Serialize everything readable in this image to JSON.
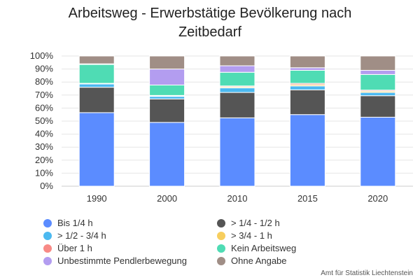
{
  "chart_data": {
    "type": "bar",
    "stacked": true,
    "title": "Arbeitsweg - Erwerbstätige Bevölkerung nach Zeitbedarf",
    "title_lines": [
      "Arbeitsweg - Erwerbstätige Bevölkerung nach",
      "Zeitbedarf"
    ],
    "categories": [
      "1990",
      "2000",
      "2010",
      "2015",
      "2020"
    ],
    "ylim": [
      0,
      100
    ],
    "y_ticks": [
      "0%",
      "10%",
      "20%",
      "30%",
      "40%",
      "50%",
      "60%",
      "70%",
      "80%",
      "90%",
      "100%"
    ],
    "grid": true,
    "legend_position": "bottom",
    "series": [
      {
        "name": "Bis 1/4 h",
        "color": "#5b8cff",
        "values": [
          56.5,
          49.0,
          52.5,
          55.0,
          53.0
        ]
      },
      {
        "name": "> 1/4 - 1/2 h",
        "color": "#555555",
        "values": [
          19.5,
          18.0,
          19.5,
          19.0,
          16.5
        ]
      },
      {
        "name": "> 1/2 - 3/4 h",
        "color": "#4cb9f0",
        "values": [
          2.5,
          2.0,
          3.5,
          3.0,
          2.5
        ]
      },
      {
        "name": "> 3/4 - 1 h",
        "color": "#f7ce5e",
        "values": [
          0.3,
          0.4,
          0.8,
          1.0,
          1.0
        ]
      },
      {
        "name": "Über 1 h",
        "color": "#f88a86",
        "values": [
          0.2,
          0.3,
          0.7,
          1.0,
          0.8
        ]
      },
      {
        "name": "Kein Arbeitsweg",
        "color": "#4fdcb4",
        "values": [
          14.5,
          8.0,
          10.5,
          10.0,
          12.0
        ]
      },
      {
        "name": "Unbestimmte Pendlerbewegung",
        "color": "#b39df0",
        "values": [
          0.5,
          12.3,
          5.0,
          2.0,
          3.2
        ]
      },
      {
        "name": "Ohne Angabe",
        "color": "#a08e86",
        "values": [
          6.0,
          10.0,
          7.5,
          9.0,
          11.0
        ]
      }
    ],
    "legend_order": [
      0,
      1,
      2,
      3,
      4,
      5,
      6,
      7
    ],
    "credit": "Amt für Statistik Liechtenstein"
  }
}
